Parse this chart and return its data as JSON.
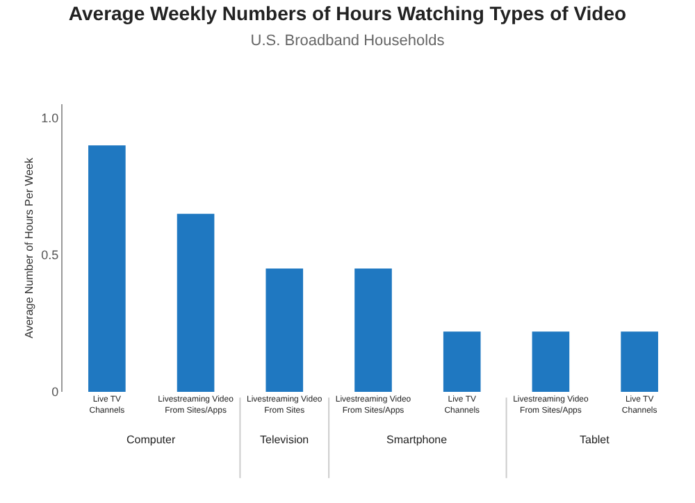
{
  "chart_data": {
    "type": "bar",
    "title": "Average Weekly Numbers of Hours Watching Types of Video",
    "subtitle": "U.S. Broadband Households",
    "ylabel": "Average Number of Hours Per Week",
    "categories": [
      "Live TV Channels",
      "Livestreaming Video From Sites/Apps",
      "Livestreaming Video From Sites",
      "Livestreaming Video From Sites/Apps",
      "Live TV Channels",
      "Livestreaming Video From Sites/Apps",
      "Live TV Channels"
    ],
    "values": [
      0.9,
      0.65,
      0.45,
      0.45,
      0.22,
      0.22,
      0.22
    ],
    "color": "#1f78c1",
    "annotations": [
      "Computer",
      "Television",
      "Smartphone",
      "Tablet"
    ],
    "ylim": [
      0,
      1.05
    ],
    "yticks": [
      0,
      0.5,
      {
        "value": 1,
        "label": "1.0"
      }
    ],
    "legend": false
  }
}
